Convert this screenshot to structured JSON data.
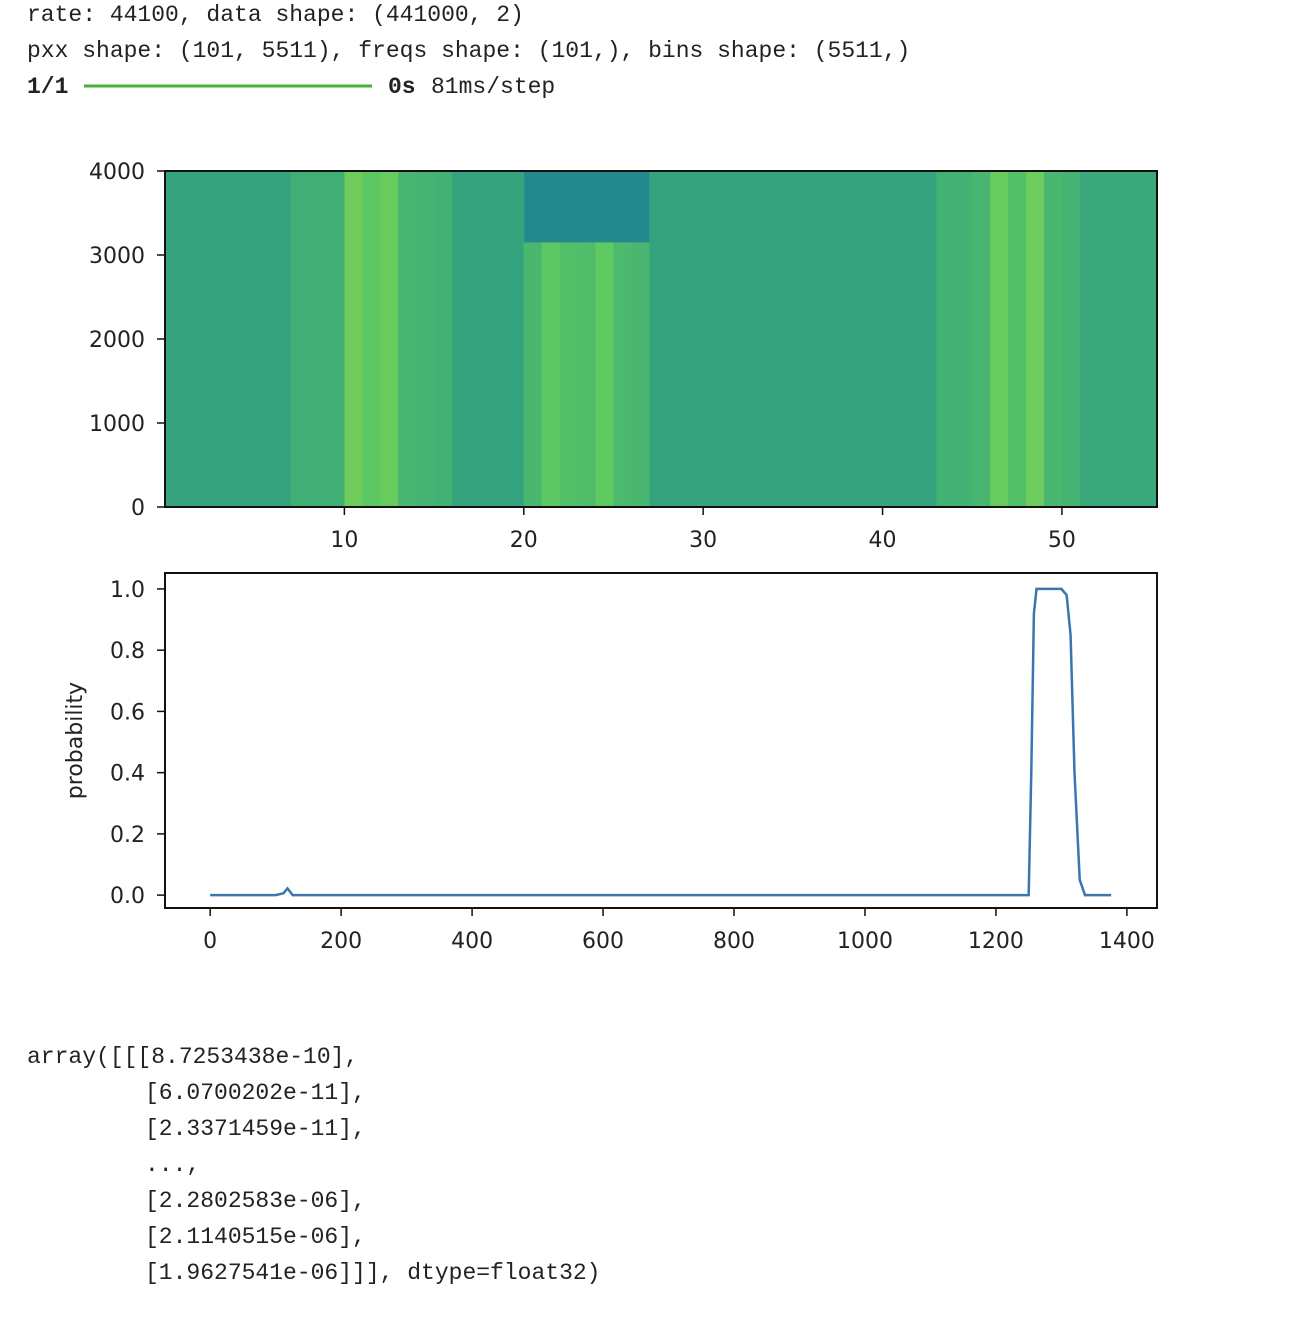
{
  "output": {
    "lines": [
      "rate: 44100, data shape: (441000, 2)",
      "pxx shape: (101, 5511), freqs shape: (101,), bins shape: (5511,)"
    ],
    "progress": {
      "count": "1/1",
      "time": "0s",
      "rate": "81ms/step"
    },
    "array_lines": [
      "array([[[8.7253438e-10],",
      "[6.0700202e-11],",
      "[2.3371459e-11],",
      "...,",
      "[2.2802583e-06],",
      "[2.1140515e-06],",
      "[1.9627541e-06]]], dtype=float32)"
    ]
  },
  "chart_data": [
    {
      "type": "heatmap",
      "x": [
        0,
        1,
        2,
        3,
        4,
        5,
        6,
        7,
        8,
        9,
        10,
        11,
        12,
        13,
        14,
        15,
        16,
        17,
        18,
        19,
        20,
        21,
        22,
        23,
        24,
        25,
        26,
        27,
        28,
        29,
        30,
        31,
        32,
        33,
        34,
        35,
        36,
        37,
        38,
        39,
        40,
        41,
        42,
        43,
        44,
        45,
        46,
        47,
        48,
        49,
        50,
        51,
        52,
        53,
        54
      ],
      "values": [
        0.3,
        0.3,
        0.3,
        0.3,
        0.3,
        0.3,
        0.3,
        0.42,
        0.42,
        0.42,
        0.8,
        0.72,
        0.78,
        0.5,
        0.48,
        0.45,
        0.3,
        0.3,
        0.3,
        0.3,
        0.52,
        0.72,
        0.62,
        0.6,
        0.74,
        0.55,
        0.52,
        0.3,
        0.3,
        0.3,
        0.3,
        0.3,
        0.3,
        0.3,
        0.3,
        0.3,
        0.3,
        0.3,
        0.3,
        0.3,
        0.3,
        0.3,
        0.3,
        0.45,
        0.45,
        0.5,
        0.78,
        0.62,
        0.8,
        0.52,
        0.48,
        0.35,
        0.35,
        0.35,
        0.35
      ],
      "band_top": [
        4000,
        4000,
        4000,
        4000,
        4000,
        4000,
        4000,
        4000,
        4000,
        4000,
        4000,
        4000,
        4000,
        4000,
        4000,
        4000,
        4000,
        4000,
        4000,
        4000,
        3150,
        3150,
        3150,
        3150,
        3150,
        3150,
        3150,
        4000,
        4000,
        4000,
        4000,
        4000,
        4000,
        4000,
        4000,
        4000,
        4000,
        4000,
        4000,
        4000,
        4000,
        4000,
        4000,
        4000,
        4000,
        4000,
        4000,
        4000,
        4000,
        4000,
        4000,
        4000,
        4000,
        4000,
        4000
      ],
      "xlim": [
        0,
        55.3
      ],
      "xticks": [
        10,
        20,
        30,
        40,
        50
      ],
      "ylim": [
        0,
        4000
      ],
      "yticks": [
        0,
        1000,
        2000,
        3000,
        4000
      ]
    },
    {
      "type": "line",
      "ylabel": "probability",
      "x": [
        0,
        100,
        112,
        118,
        126,
        1250,
        1254,
        1258,
        1262,
        1300,
        1308,
        1314,
        1320,
        1328,
        1336,
        1376
      ],
      "series": [
        {
          "color": "#3b75af",
          "values": [
            0,
            0,
            0.006,
            0.022,
            0,
            0,
            0.4,
            0.92,
            1,
            1,
            0.98,
            0.85,
            0.4,
            0.05,
            0,
            0
          ]
        }
      ],
      "xlim": [
        -69,
        1446
      ],
      "xticks": [
        0,
        200,
        400,
        600,
        800,
        1000,
        1200,
        1400
      ],
      "ylim": [
        -0.042,
        1.052
      ],
      "yticks": [
        {
          "value": 0,
          "label": "0.0"
        },
        0.2,
        0.4,
        0.6,
        0.8,
        {
          "value": 1,
          "label": "1.0"
        }
      ]
    }
  ]
}
